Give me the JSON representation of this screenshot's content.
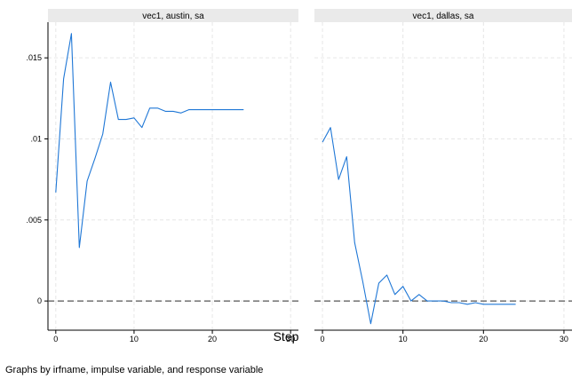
{
  "colors": {
    "line": "#1f77d6",
    "zero_line": "#555555",
    "grid": "#e6e6e6",
    "strip": "#eaeaea"
  },
  "xlabel": "Step",
  "note": "Graphs by irfname, impulse variable, and response variable",
  "chart_data": [
    {
      "type": "line",
      "title": "vec1, austin, sa",
      "xlim": [
        -1,
        31
      ],
      "ylim": [
        -0.0018,
        0.0172
      ],
      "xticks": [
        0,
        10,
        20,
        30
      ],
      "xtick_labels": [
        "0",
        "10",
        "20",
        "30"
      ],
      "yticks": [
        0,
        0.005,
        0.01,
        0.015
      ],
      "ytick_labels": [
        "0",
        ".005",
        ".01",
        ".015"
      ],
      "grid": true,
      "reference_line_y": 0,
      "x": [
        0,
        1,
        2,
        3,
        4,
        5,
        6,
        7,
        8,
        9,
        10,
        11,
        12,
        13,
        14,
        15,
        16,
        17,
        18,
        19,
        20,
        21,
        22,
        23,
        24
      ],
      "y": [
        0.0067,
        0.0137,
        0.0165,
        0.0033,
        0.0074,
        0.0088,
        0.0103,
        0.0135,
        0.0112,
        0.0112,
        0.0113,
        0.0107,
        0.0119,
        0.0119,
        0.0117,
        0.0117,
        0.0116,
        0.0118,
        0.0118,
        0.0118,
        0.0118,
        0.0118,
        0.0118,
        0.0118,
        0.0118
      ]
    },
    {
      "type": "line",
      "title": "vec1, dallas, sa",
      "xlim": [
        -1,
        31
      ],
      "ylim": [
        -0.0018,
        0.0172
      ],
      "xticks": [
        0,
        10,
        20,
        30
      ],
      "xtick_labels": [
        "0",
        "10",
        "20",
        "30"
      ],
      "grid": true,
      "reference_line_y": 0,
      "x": [
        0,
        1,
        2,
        3,
        4,
        5,
        6,
        7,
        8,
        9,
        10,
        11,
        12,
        13,
        14,
        15,
        16,
        17,
        18,
        19,
        20,
        21,
        22,
        23,
        24
      ],
      "y": [
        0.0098,
        0.0107,
        0.0075,
        0.0089,
        0.0036,
        0.0012,
        -0.0014,
        0.0011,
        0.0016,
        0.0004,
        0.0009,
        0.0,
        0.0004,
        0.0,
        0.0,
        0.0,
        -0.0001,
        -0.0001,
        -0.0002,
        -0.0001,
        -0.0002,
        -0.0002,
        -0.0002,
        -0.0002,
        -0.0002
      ]
    }
  ]
}
